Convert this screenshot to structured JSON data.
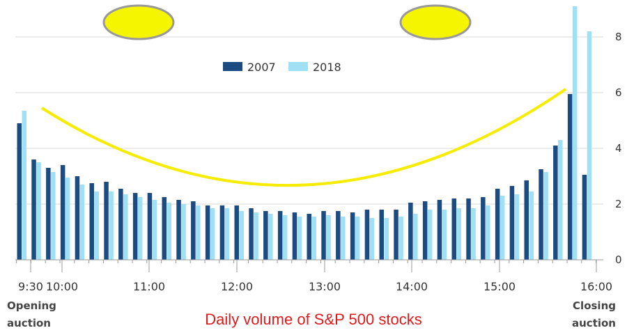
{
  "chart_data": {
    "type": "bar",
    "title": "",
    "caption": "Daily volume of S&P 500 stocks",
    "x_tick_labels": [
      "9:30",
      "10:00",
      "11:00",
      "12:00",
      "13:00",
      "14:00",
      "15:00",
      "16:00"
    ],
    "ylim": [
      0,
      9
    ],
    "y_ticks": [
      0,
      2,
      4,
      6,
      8
    ],
    "grid": "horizontal",
    "legend_position": "top-center",
    "opening_label": "Opening auction",
    "closing_label": "Closing auction",
    "series": [
      {
        "name": "2007",
        "color": "#1c4b82",
        "values": [
          4.9,
          3.6,
          3.3,
          3.4,
          3.0,
          2.75,
          2.8,
          2.55,
          2.4,
          2.4,
          2.25,
          2.15,
          2.1,
          1.95,
          1.95,
          1.95,
          1.85,
          1.75,
          1.75,
          1.7,
          1.65,
          1.75,
          1.75,
          1.7,
          1.8,
          1.8,
          1.8,
          2.05,
          2.1,
          2.15,
          2.2,
          2.2,
          2.25,
          2.55,
          2.65,
          2.85,
          3.25,
          4.1,
          5.95,
          3.05
        ]
      },
      {
        "name": "2018",
        "color": "#a0e0f4",
        "values": [
          5.35,
          3.5,
          3.15,
          2.95,
          2.7,
          2.45,
          2.45,
          2.35,
          2.25,
          2.15,
          2.05,
          2.0,
          1.95,
          1.85,
          1.85,
          1.75,
          1.7,
          1.65,
          1.6,
          1.55,
          1.55,
          1.6,
          1.55,
          1.55,
          1.5,
          1.5,
          1.55,
          1.65,
          1.8,
          1.8,
          1.85,
          1.85,
          1.95,
          2.3,
          2.35,
          2.45,
          3.15,
          4.3,
          9.1,
          8.2
        ]
      }
    ],
    "annotations": {
      "smile_curve_color": "#f5ec00",
      "eye_color": "#f5f500",
      "eye_outline_color": "#999999"
    }
  }
}
